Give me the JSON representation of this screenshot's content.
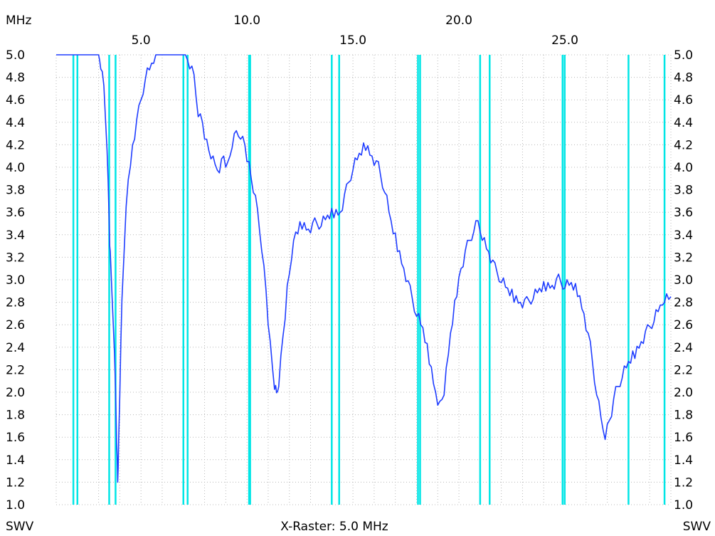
{
  "labels": {
    "top_left": "MHz",
    "bottom_left": "SWV",
    "bottom_center": "X-Raster: 5.0 MHz",
    "bottom_right": "SWV"
  },
  "colors": {
    "background": "#ffffff",
    "trace": "#1f3dff",
    "band_markers": "#00e6e6",
    "grid": "#b8b8b8",
    "text": "#000000"
  },
  "chart_data": {
    "type": "line",
    "xlim": [
      1.0,
      30.0
    ],
    "ylim": [
      1.0,
      5.0
    ],
    "x_tick_labels_upper": [
      "10.0",
      "20.0"
    ],
    "x_tick_labels_lower": [
      "5.0",
      "15.0",
      "25.0"
    ],
    "x_ticks_upper": [
      10.0,
      20.0
    ],
    "x_ticks_lower": [
      5.0,
      15.0,
      25.0
    ],
    "y_ticks": [
      "5.0",
      "4.8",
      "4.6",
      "4.4",
      "4.2",
      "4.0",
      "3.8",
      "3.6",
      "3.4",
      "3.2",
      "3.0",
      "2.8",
      "2.6",
      "2.4",
      "2.2",
      "2.0",
      "1.8",
      "1.6",
      "1.4",
      "1.2",
      "1.0"
    ],
    "y_tick_values": [
      5.0,
      4.8,
      4.6,
      4.4,
      4.2,
      4.0,
      3.8,
      3.6,
      3.4,
      3.2,
      3.0,
      2.8,
      2.6,
      2.4,
      2.2,
      2.0,
      1.8,
      1.6,
      1.4,
      1.2,
      1.0
    ],
    "grid": true,
    "band_markers_mhz": [
      1.81,
      2.0,
      3.5,
      3.8,
      7.0,
      7.2,
      10.1,
      10.15,
      14.0,
      14.35,
      18.068,
      18.168,
      21.0,
      21.45,
      24.89,
      24.99,
      28.0,
      29.7
    ],
    "series": [
      {
        "points": [
          [
            1.0,
            5.0
          ],
          [
            2.0,
            5.0
          ],
          [
            3.0,
            5.0
          ],
          [
            3.1,
            4.9
          ],
          [
            3.25,
            4.7
          ],
          [
            3.4,
            4.2
          ],
          [
            3.5,
            3.5
          ],
          [
            3.55,
            3.2
          ],
          [
            3.7,
            2.6
          ],
          [
            3.8,
            2.0
          ],
          [
            3.85,
            1.6
          ],
          [
            3.9,
            1.2
          ],
          [
            3.95,
            1.55
          ],
          [
            4.0,
            2.0
          ],
          [
            4.1,
            2.8
          ],
          [
            4.3,
            3.7
          ],
          [
            4.6,
            4.2
          ],
          [
            4.9,
            4.5
          ],
          [
            5.2,
            4.8
          ],
          [
            5.5,
            4.9
          ],
          [
            5.7,
            5.0
          ],
          [
            6.5,
            5.0
          ],
          [
            7.1,
            5.0
          ],
          [
            7.3,
            4.9
          ],
          [
            7.5,
            4.8
          ],
          [
            7.7,
            4.5
          ],
          [
            7.9,
            4.4
          ],
          [
            8.1,
            4.2
          ],
          [
            8.3,
            4.1
          ],
          [
            8.5,
            4.0
          ],
          [
            8.7,
            4.0
          ],
          [
            8.9,
            4.1
          ],
          [
            9.1,
            4.0
          ],
          [
            9.3,
            4.2
          ],
          [
            9.5,
            4.3
          ],
          [
            9.7,
            4.3
          ],
          [
            9.9,
            4.2
          ],
          [
            10.1,
            4.0
          ],
          [
            10.3,
            3.8
          ],
          [
            10.5,
            3.6
          ],
          [
            10.7,
            3.3
          ],
          [
            10.9,
            2.9
          ],
          [
            11.1,
            2.4
          ],
          [
            11.3,
            2.05
          ],
          [
            11.4,
            1.97
          ],
          [
            11.5,
            2.1
          ],
          [
            11.7,
            2.5
          ],
          [
            11.9,
            2.9
          ],
          [
            12.1,
            3.2
          ],
          [
            12.3,
            3.4
          ],
          [
            12.6,
            3.5
          ],
          [
            12.9,
            3.45
          ],
          [
            13.2,
            3.5
          ],
          [
            13.5,
            3.5
          ],
          [
            13.8,
            3.55
          ],
          [
            14.1,
            3.6
          ],
          [
            14.4,
            3.6
          ],
          [
            14.7,
            3.8
          ],
          [
            15.0,
            4.0
          ],
          [
            15.3,
            4.1
          ],
          [
            15.6,
            4.2
          ],
          [
            15.9,
            4.1
          ],
          [
            16.2,
            4.0
          ],
          [
            16.5,
            3.8
          ],
          [
            16.8,
            3.5
          ],
          [
            17.1,
            3.3
          ],
          [
            17.4,
            3.1
          ],
          [
            17.7,
            2.9
          ],
          [
            18.0,
            2.7
          ],
          [
            18.3,
            2.55
          ],
          [
            18.6,
            2.3
          ],
          [
            18.9,
            2.0
          ],
          [
            19.1,
            1.87
          ],
          [
            19.3,
            2.0
          ],
          [
            19.6,
            2.5
          ],
          [
            19.9,
            2.9
          ],
          [
            20.1,
            3.1
          ],
          [
            20.4,
            3.3
          ],
          [
            20.7,
            3.45
          ],
          [
            20.9,
            3.5
          ],
          [
            21.1,
            3.4
          ],
          [
            21.4,
            3.25
          ],
          [
            21.7,
            3.1
          ],
          [
            22.0,
            3.0
          ],
          [
            22.3,
            2.9
          ],
          [
            22.6,
            2.85
          ],
          [
            22.9,
            2.8
          ],
          [
            23.2,
            2.8
          ],
          [
            23.5,
            2.85
          ],
          [
            23.8,
            2.9
          ],
          [
            24.1,
            2.95
          ],
          [
            24.4,
            2.95
          ],
          [
            24.7,
            3.0
          ],
          [
            25.0,
            2.95
          ],
          [
            25.3,
            2.95
          ],
          [
            25.6,
            2.9
          ],
          [
            25.9,
            2.7
          ],
          [
            26.2,
            2.4
          ],
          [
            26.5,
            2.0
          ],
          [
            26.7,
            1.75
          ],
          [
            26.9,
            1.63
          ],
          [
            27.1,
            1.75
          ],
          [
            27.4,
            2.0
          ],
          [
            27.7,
            2.15
          ],
          [
            28.0,
            2.25
          ],
          [
            28.3,
            2.35
          ],
          [
            28.6,
            2.45
          ],
          [
            28.9,
            2.55
          ],
          [
            29.2,
            2.65
          ],
          [
            29.5,
            2.75
          ],
          [
            29.7,
            2.85
          ],
          [
            30.0,
            2.85
          ]
        ]
      }
    ]
  }
}
